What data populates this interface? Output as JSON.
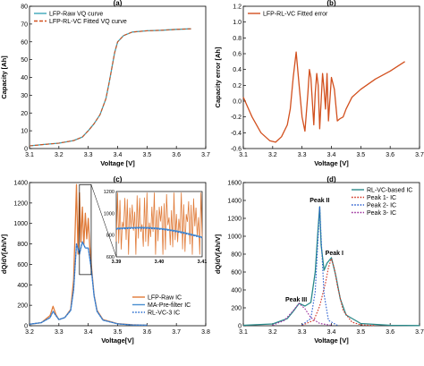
{
  "chart_data": [
    {
      "panel": "(a)",
      "type": "line",
      "xlabel": "Voltage [V]",
      "ylabel": "Capacity [Ah]",
      "xlim": [
        3.1,
        3.7
      ],
      "ylim": [
        0,
        80
      ],
      "xticks": [
        "3.1",
        "3.2",
        "3.3",
        "3.4",
        "3.5",
        "3.6",
        "3.7"
      ],
      "yticks": [
        "0",
        "10",
        "20",
        "30",
        "40",
        "50",
        "60",
        "70",
        "80"
      ],
      "legend": "top-left",
      "grid": false,
      "series": [
        {
          "name": "LFP-Raw VQ curve",
          "color": "#3aa6b9",
          "style": "solid",
          "x": [
            3.1,
            3.15,
            3.2,
            3.25,
            3.28,
            3.3,
            3.32,
            3.34,
            3.36,
            3.37,
            3.38,
            3.39,
            3.4,
            3.42,
            3.45,
            3.5,
            3.55,
            3.6,
            3.65
          ],
          "y": [
            1.5,
            2.3,
            3.0,
            4.5,
            6.5,
            10,
            14,
            19,
            28,
            36,
            45,
            54,
            60,
            63.5,
            65.5,
            66.2,
            66.5,
            67,
            67.3
          ]
        },
        {
          "name": "LFP-RL-VC Fitted VQ curve",
          "color": "#d2501e",
          "style": "dashed",
          "x": [
            3.1,
            3.15,
            3.2,
            3.25,
            3.28,
            3.3,
            3.32,
            3.34,
            3.36,
            3.37,
            3.38,
            3.39,
            3.4,
            3.42,
            3.45,
            3.5,
            3.55,
            3.6,
            3.65
          ],
          "y": [
            1.5,
            2.3,
            3.0,
            4.5,
            6.5,
            10,
            14,
            19,
            28,
            36,
            45,
            54,
            60,
            63.5,
            65.5,
            66.2,
            66.5,
            67,
            67.3
          ]
        }
      ]
    },
    {
      "panel": "(b)",
      "type": "line",
      "xlabel": "Voltage [V]",
      "ylabel": "Capacity error [Ah]",
      "xlim": [
        3.1,
        3.7
      ],
      "ylim": [
        -0.6,
        1.2
      ],
      "xticks": [
        "3.1",
        "3.2",
        "3.3",
        "3.4",
        "3.5",
        "3.6",
        "3.7"
      ],
      "yticks": [
        "-0.6",
        "-0.4",
        "-0.2",
        "0.0",
        "0.2",
        "0.4",
        "0.6",
        "0.8",
        "1.0",
        "1.2"
      ],
      "legend": "top-left",
      "grid": false,
      "series": [
        {
          "name": "LFP-RL-VC Fitted error",
          "color": "#d2501e",
          "style": "solid",
          "x": [
            3.1,
            3.13,
            3.16,
            3.19,
            3.21,
            3.23,
            3.25,
            3.26,
            3.27,
            3.28,
            3.29,
            3.3,
            3.31,
            3.32,
            3.325,
            3.33,
            3.34,
            3.345,
            3.35,
            3.355,
            3.36,
            3.37,
            3.375,
            3.38,
            3.385,
            3.39,
            3.4,
            3.41,
            3.42,
            3.43,
            3.44,
            3.45,
            3.47,
            3.5,
            3.55,
            3.6,
            3.65
          ],
          "y": [
            0.05,
            -0.2,
            -0.4,
            -0.5,
            -0.52,
            -0.45,
            -0.3,
            -0.1,
            0.3,
            0.62,
            0.2,
            -0.2,
            -0.38,
            0.1,
            0.4,
            0.3,
            -0.3,
            0.1,
            0.35,
            0.2,
            -0.35,
            0.35,
            0.15,
            -0.1,
            0.35,
            -0.25,
            0.3,
            0.15,
            -0.25,
            -0.22,
            -0.2,
            -0.1,
            0.05,
            0.15,
            0.28,
            0.38,
            0.5
          ]
        }
      ]
    },
    {
      "panel": "(c)",
      "type": "line",
      "xlabel": "Voltage[V]",
      "ylabel": "dQ/dV[Ah/V]",
      "xlim": [
        3.2,
        3.8
      ],
      "ylim": [
        0,
        1400
      ],
      "xticks": [
        "3.2",
        "3.3",
        "3.4",
        "3.5",
        "3.6",
        "3.7",
        "3.8"
      ],
      "yticks": [
        "0",
        "200",
        "400",
        "600",
        "800",
        "1000",
        "1200",
        "1400"
      ],
      "legend": "bottom-right",
      "grid": false,
      "series": [
        {
          "name": "LFP-Raw IC",
          "color": "#e07b39",
          "style": "solid",
          "x": [
            3.2,
            3.24,
            3.27,
            3.28,
            3.29,
            3.3,
            3.32,
            3.34,
            3.35,
            3.355,
            3.36,
            3.365,
            3.37,
            3.375,
            3.38,
            3.385,
            3.39,
            3.395,
            3.4,
            3.405,
            3.41,
            3.42,
            3.43,
            3.45,
            3.5,
            3.55,
            3.6
          ],
          "y": [
            15,
            30,
            100,
            190,
            110,
            60,
            80,
            160,
            450,
            900,
            1380,
            700,
            1300,
            820,
            1160,
            790,
            1100,
            850,
            1050,
            780,
            600,
            300,
            150,
            60,
            20,
            10,
            5
          ]
        },
        {
          "name": "MA-Pre-filter IC",
          "color": "#4a8fd0",
          "style": "solid",
          "x": [
            3.2,
            3.24,
            3.27,
            3.28,
            3.29,
            3.3,
            3.32,
            3.34,
            3.35,
            3.36,
            3.37,
            3.38,
            3.39,
            3.4,
            3.41,
            3.42,
            3.43,
            3.45,
            3.5,
            3.55,
            3.6
          ],
          "y": [
            15,
            30,
            80,
            140,
            100,
            60,
            80,
            150,
            350,
            800,
            700,
            820,
            760,
            760,
            560,
            290,
            140,
            55,
            18,
            8,
            5
          ]
        },
        {
          "name": "RL-VC-3 IC",
          "color": "#2a6fd0",
          "style": "dotted",
          "x": [
            3.2,
            3.24,
            3.27,
            3.28,
            3.29,
            3.3,
            3.32,
            3.34,
            3.35,
            3.36,
            3.37,
            3.38,
            3.39,
            3.4,
            3.41,
            3.42,
            3.43,
            3.45,
            3.5,
            3.55,
            3.6
          ],
          "y": [
            15,
            30,
            80,
            140,
            100,
            60,
            80,
            150,
            350,
            800,
            700,
            820,
            760,
            760,
            560,
            290,
            140,
            55,
            18,
            8,
            5
          ]
        }
      ],
      "inset": {
        "xlim": [
          3.39,
          3.41
        ],
        "ylim": [
          600,
          1200
        ],
        "xticks": [
          "3.39",
          "3.40",
          "3.41"
        ],
        "yticks": [
          "600",
          "800",
          "1000",
          "1200"
        ]
      }
    },
    {
      "panel": "(d)",
      "type": "line",
      "xlabel": "Voltage [V]",
      "ylabel": "dQ/dV[Ah/V]",
      "xlim": [
        3.1,
        3.7
      ],
      "ylim": [
        0,
        1600
      ],
      "xticks": [
        "3.1",
        "3.2",
        "3.3",
        "3.4",
        "3.5",
        "3.6",
        "3.7"
      ],
      "yticks": [
        "0",
        "200",
        "400",
        "600",
        "800",
        "1000",
        "1200",
        "1400",
        "1600"
      ],
      "legend": "top-right",
      "grid": false,
      "annotations": [
        "Peak III",
        "Peak II",
        "Peak I"
      ],
      "series": [
        {
          "name": "RL-VC-based IC",
          "color": "#2a8a8a",
          "style": "solid",
          "x": [
            3.1,
            3.2,
            3.25,
            3.27,
            3.29,
            3.31,
            3.33,
            3.345,
            3.355,
            3.36,
            3.365,
            3.375,
            3.385,
            3.4,
            3.415,
            3.43,
            3.45,
            3.5,
            3.6,
            3.7
          ],
          "y": [
            5,
            20,
            80,
            160,
            250,
            220,
            260,
            600,
            1100,
            1330,
            900,
            620,
            700,
            760,
            560,
            300,
            120,
            25,
            5,
            2
          ]
        },
        {
          "name": "Peak 1- IC",
          "color": "#d2301e",
          "style": "dotted",
          "x": [
            3.3,
            3.34,
            3.36,
            3.38,
            3.39,
            3.4,
            3.41,
            3.42,
            3.44,
            3.47,
            3.5,
            3.55
          ],
          "y": [
            5,
            60,
            220,
            480,
            650,
            750,
            640,
            450,
            170,
            40,
            10,
            2
          ]
        },
        {
          "name": "Peak 2- IC",
          "color": "#2a5fd0",
          "style": "dotted",
          "x": [
            3.3,
            3.33,
            3.345,
            3.355,
            3.36,
            3.365,
            3.375,
            3.39,
            3.42
          ],
          "y": [
            10,
            80,
            380,
            1000,
            1330,
            980,
            350,
            60,
            5
          ]
        },
        {
          "name": "Peak 3- IC",
          "color": "#9a2a9a",
          "style": "dotted",
          "x": [
            3.2,
            3.24,
            3.27,
            3.29,
            3.31,
            3.33,
            3.36,
            3.4
          ],
          "y": [
            5,
            60,
            170,
            250,
            190,
            90,
            25,
            5
          ]
        }
      ]
    }
  ]
}
